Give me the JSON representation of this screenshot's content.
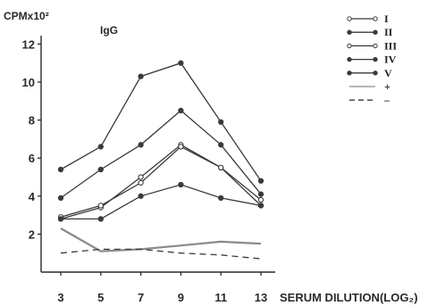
{
  "chart_data": {
    "type": "line",
    "title": "IgG",
    "ylabel": "CPMx10²",
    "xlabel": "SERUM DILUTION(LOG₂)",
    "x": [
      3,
      5,
      7,
      9,
      11,
      13
    ],
    "xlim": [
      3,
      13
    ],
    "ylim": [
      0,
      12
    ],
    "yticks": [
      2,
      4,
      6,
      8,
      10,
      12
    ],
    "grid": false,
    "legend_position": "top-right",
    "series": [
      {
        "name": "I",
        "marker": "open-circle",
        "linestyle": "solid",
        "values": [
          2.8,
          3.4,
          5.0,
          6.7,
          5.5,
          3.5
        ]
      },
      {
        "name": "II",
        "marker": "filled-circle",
        "linestyle": "solid",
        "values": [
          5.4,
          6.6,
          10.3,
          11.0,
          7.9,
          4.8
        ]
      },
      {
        "name": "III",
        "marker": "open-circle",
        "linestyle": "solid",
        "values": [
          2.9,
          3.5,
          4.7,
          6.6,
          5.5,
          3.8
        ]
      },
      {
        "name": "IV",
        "marker": "filled-circle",
        "linestyle": "solid",
        "values": [
          3.9,
          5.4,
          6.7,
          8.5,
          6.7,
          4.1
        ]
      },
      {
        "name": "V",
        "marker": "filled-circle",
        "linestyle": "solid",
        "values": [
          2.8,
          2.8,
          4.0,
          4.6,
          3.9,
          3.5
        ]
      },
      {
        "name": "+",
        "marker": "none",
        "linestyle": "solid",
        "values": [
          2.3,
          1.1,
          1.2,
          1.4,
          1.6,
          1.5
        ]
      },
      {
        "name": "–",
        "marker": "none",
        "linestyle": "dashed",
        "values": [
          1.0,
          1.2,
          1.2,
          1.0,
          0.9,
          0.7
        ]
      }
    ],
    "colors": {
      "axis": "#2a2a2a",
      "line": "#3a3a3a",
      "plus_line": "#8a8a8a"
    }
  }
}
